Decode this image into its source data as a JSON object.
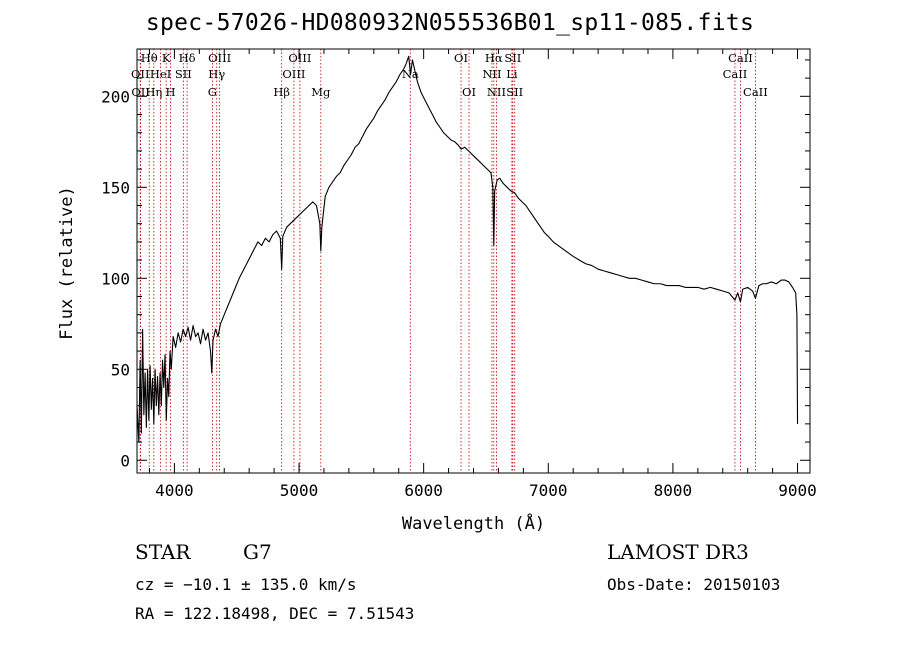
{
  "chart_data": {
    "type": "line",
    "title": "spec-57026-HD080932N055536B01_sp11-085.fits",
    "xlabel": "Wavelength (Å)",
    "ylabel": "Flux (relative)",
    "xlim": [
      3700,
      9100
    ],
    "ylim": [
      -7,
      226
    ],
    "xticks": [
      4000,
      5000,
      6000,
      7000,
      8000,
      9000
    ],
    "yticks": [
      0,
      50,
      100,
      150,
      200
    ],
    "series": [
      {
        "name": "flux",
        "points": [
          [
            3700,
            30
          ],
          [
            3715,
            10
          ],
          [
            3725,
            55
          ],
          [
            3735,
            15
          ],
          [
            3745,
            72
          ],
          [
            3755,
            25
          ],
          [
            3765,
            48
          ],
          [
            3775,
            18
          ],
          [
            3785,
            50
          ],
          [
            3795,
            22
          ],
          [
            3805,
            52
          ],
          [
            3815,
            28
          ],
          [
            3825,
            45
          ],
          [
            3835,
            20
          ],
          [
            3845,
            50
          ],
          [
            3855,
            30
          ],
          [
            3865,
            46
          ],
          [
            3875,
            25
          ],
          [
            3885,
            48
          ],
          [
            3895,
            30
          ],
          [
            3905,
            55
          ],
          [
            3915,
            40
          ],
          [
            3925,
            58
          ],
          [
            3935,
            22
          ],
          [
            3945,
            45
          ],
          [
            3955,
            35
          ],
          [
            3965,
            60
          ],
          [
            3975,
            50
          ],
          [
            3990,
            68
          ],
          [
            4010,
            62
          ],
          [
            4030,
            70
          ],
          [
            4050,
            65
          ],
          [
            4070,
            72
          ],
          [
            4090,
            68
          ],
          [
            4110,
            73
          ],
          [
            4130,
            66
          ],
          [
            4150,
            74
          ],
          [
            4170,
            68
          ],
          [
            4190,
            70
          ],
          [
            4210,
            64
          ],
          [
            4230,
            72
          ],
          [
            4250,
            66
          ],
          [
            4270,
            70
          ],
          [
            4290,
            60
          ],
          [
            4300,
            48
          ],
          [
            4310,
            66
          ],
          [
            4330,
            72
          ],
          [
            4350,
            68
          ],
          [
            4370,
            75
          ],
          [
            4400,
            80
          ],
          [
            4430,
            85
          ],
          [
            4460,
            90
          ],
          [
            4490,
            95
          ],
          [
            4520,
            100
          ],
          [
            4550,
            104
          ],
          [
            4580,
            108
          ],
          [
            4610,
            112
          ],
          [
            4640,
            116
          ],
          [
            4670,
            120
          ],
          [
            4700,
            118
          ],
          [
            4730,
            122
          ],
          [
            4760,
            120
          ],
          [
            4790,
            124
          ],
          [
            4820,
            126
          ],
          [
            4850,
            122
          ],
          [
            4861,
            105
          ],
          [
            4870,
            123
          ],
          [
            4900,
            128
          ],
          [
            4930,
            130
          ],
          [
            4960,
            132
          ],
          [
            4990,
            134
          ],
          [
            5020,
            136
          ],
          [
            5050,
            138
          ],
          [
            5080,
            140
          ],
          [
            5110,
            142
          ],
          [
            5140,
            140
          ],
          [
            5167,
            130
          ],
          [
            5175,
            115
          ],
          [
            5183,
            128
          ],
          [
            5210,
            145
          ],
          [
            5240,
            150
          ],
          [
            5270,
            153
          ],
          [
            5300,
            156
          ],
          [
            5330,
            158
          ],
          [
            5360,
            162
          ],
          [
            5390,
            165
          ],
          [
            5420,
            168
          ],
          [
            5450,
            172
          ],
          [
            5480,
            174
          ],
          [
            5510,
            178
          ],
          [
            5540,
            182
          ],
          [
            5570,
            185
          ],
          [
            5600,
            188
          ],
          [
            5630,
            192
          ],
          [
            5660,
            195
          ],
          [
            5690,
            198
          ],
          [
            5720,
            202
          ],
          [
            5750,
            205
          ],
          [
            5780,
            208
          ],
          [
            5810,
            212
          ],
          [
            5840,
            215
          ],
          [
            5860,
            218
          ],
          [
            5880,
            222
          ],
          [
            5895,
            212
          ],
          [
            5910,
            220
          ],
          [
            5930,
            214
          ],
          [
            5950,
            208
          ],
          [
            5980,
            202
          ],
          [
            6010,
            198
          ],
          [
            6040,
            194
          ],
          [
            6070,
            190
          ],
          [
            6100,
            186
          ],
          [
            6130,
            183
          ],
          [
            6160,
            180
          ],
          [
            6190,
            178
          ],
          [
            6220,
            176
          ],
          [
            6250,
            175
          ],
          [
            6280,
            173
          ],
          [
            6300,
            171
          ],
          [
            6330,
            172
          ],
          [
            6360,
            170
          ],
          [
            6390,
            168
          ],
          [
            6420,
            166
          ],
          [
            6450,
            164
          ],
          [
            6480,
            162
          ],
          [
            6510,
            160
          ],
          [
            6540,
            158
          ],
          [
            6555,
            150
          ],
          [
            6563,
            118
          ],
          [
            6570,
            148
          ],
          [
            6590,
            154
          ],
          [
            6610,
            155
          ],
          [
            6640,
            152
          ],
          [
            6670,
            150
          ],
          [
            6700,
            148
          ],
          [
            6730,
            147
          ],
          [
            6760,
            144
          ],
          [
            6790,
            142
          ],
          [
            6820,
            140
          ],
          [
            6850,
            137
          ],
          [
            6880,
            134
          ],
          [
            6910,
            131
          ],
          [
            6940,
            128
          ],
          [
            6970,
            125
          ],
          [
            7000,
            123
          ],
          [
            7040,
            120
          ],
          [
            7080,
            118
          ],
          [
            7120,
            116
          ],
          [
            7160,
            114
          ],
          [
            7200,
            112
          ],
          [
            7250,
            110
          ],
          [
            7300,
            108
          ],
          [
            7350,
            107
          ],
          [
            7400,
            105
          ],
          [
            7450,
            104
          ],
          [
            7500,
            103
          ],
          [
            7550,
            102
          ],
          [
            7600,
            101
          ],
          [
            7650,
            100
          ],
          [
            7700,
            100
          ],
          [
            7750,
            99
          ],
          [
            7800,
            98
          ],
          [
            7850,
            97
          ],
          [
            7900,
            97
          ],
          [
            7950,
            96
          ],
          [
            8000,
            96
          ],
          [
            8050,
            96
          ],
          [
            8100,
            95
          ],
          [
            8150,
            95
          ],
          [
            8200,
            95
          ],
          [
            8250,
            94
          ],
          [
            8300,
            95
          ],
          [
            8350,
            94
          ],
          [
            8400,
            93
          ],
          [
            8450,
            92
          ],
          [
            8498,
            88
          ],
          [
            8520,
            92
          ],
          [
            8542,
            87
          ],
          [
            8560,
            94
          ],
          [
            8600,
            95
          ],
          [
            8640,
            93
          ],
          [
            8662,
            89
          ],
          [
            8690,
            96
          ],
          [
            8720,
            97
          ],
          [
            8750,
            97
          ],
          [
            8790,
            98
          ],
          [
            8830,
            97
          ],
          [
            8870,
            99
          ],
          [
            8900,
            99
          ],
          [
            8930,
            98
          ],
          [
            8960,
            95
          ],
          [
            8985,
            92
          ],
          [
            8995,
            80
          ],
          [
            9000,
            20
          ]
        ]
      }
    ],
    "annotations": [
      {
        "label": "Hθ",
        "x": 3798,
        "row": 1
      },
      {
        "label": "OII",
        "x": 3726,
        "row": 2
      },
      {
        "label": "OII",
        "x": 3729,
        "row": 3
      },
      {
        "label": "K",
        "x": 3934,
        "row": 1
      },
      {
        "label": "HeI",
        "x": 3889,
        "row": 2
      },
      {
        "label": "Hη",
        "x": 3835,
        "row": 3
      },
      {
        "label": "Hδ",
        "x": 4102,
        "row": 1
      },
      {
        "label": "SII",
        "x": 4072,
        "row": 2
      },
      {
        "label": "H",
        "x": 3969,
        "row": 3
      },
      {
        "label": "OIII",
        "x": 4363,
        "row": 1
      },
      {
        "label": "Hγ",
        "x": 4340,
        "row": 2
      },
      {
        "label": "G",
        "x": 4305,
        "row": 3
      },
      {
        "label": "OIII",
        "x": 5007,
        "row": 1
      },
      {
        "label": "OIII",
        "x": 4959,
        "row": 2
      },
      {
        "label": "Hβ",
        "x": 4861,
        "row": 3
      },
      {
        "label": "Mg",
        "x": 5175,
        "row": 3
      },
      {
        "label": "Na",
        "x": 5893,
        "row": 2
      },
      {
        "label": "OI",
        "x": 6300,
        "row": 1
      },
      {
        "label": "OI",
        "x": 6364,
        "row": 3
      },
      {
        "label": "Hα",
        "x": 6563,
        "row": 1
      },
      {
        "label": "SII",
        "x": 6716,
        "row": 1
      },
      {
        "label": "NII",
        "x": 6548,
        "row": 2
      },
      {
        "label": "Li",
        "x": 6708,
        "row": 2
      },
      {
        "label": "NII",
        "x": 6584,
        "row": 3
      },
      {
        "label": "SII",
        "x": 6731,
        "row": 3
      },
      {
        "label": "CaII",
        "x": 8542,
        "row": 1
      },
      {
        "label": "CaII",
        "x": 8498,
        "row": 2
      },
      {
        "label": "CaII",
        "x": 8662,
        "row": 3
      }
    ]
  },
  "info": {
    "object_type": "STAR",
    "subclass": "G7",
    "survey": "LAMOST DR3",
    "cz": "cz = −10.1 ± 135.0 km/s",
    "obs_date": "Obs-Date: 20150103",
    "coords": "RA = 122.18498, DEC =   7.51543"
  }
}
